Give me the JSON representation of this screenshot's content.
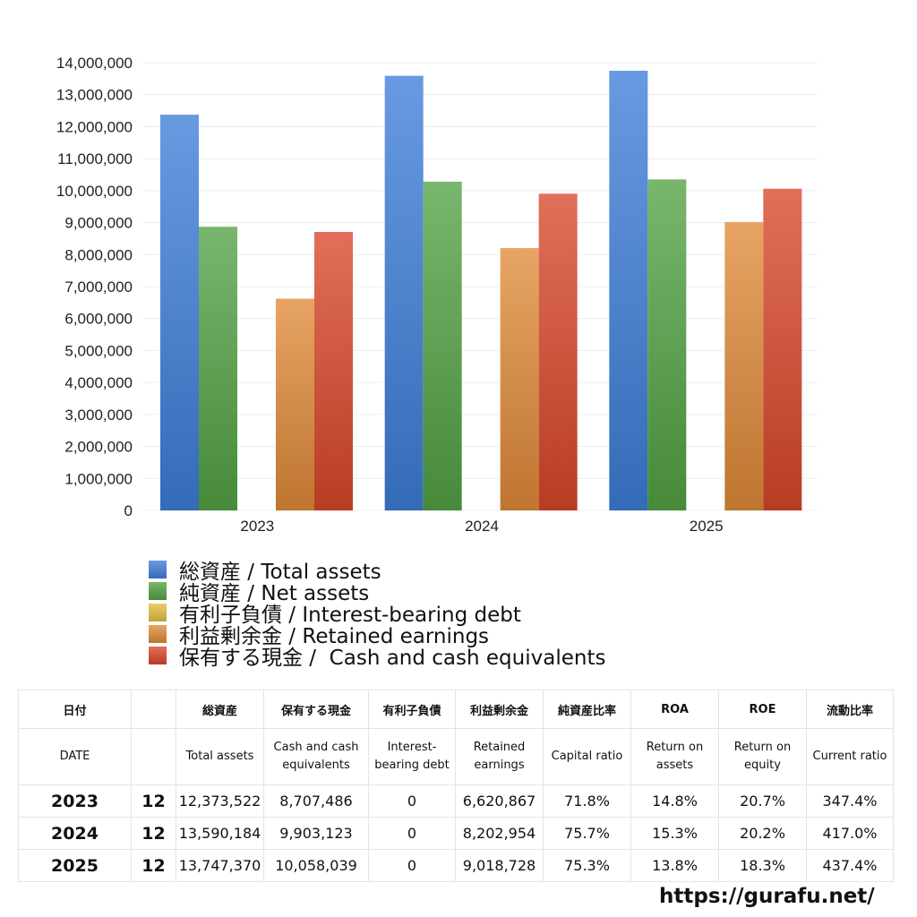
{
  "chart_data": {
    "type": "bar",
    "categories": [
      "2023",
      "2024",
      "2025"
    ],
    "series": [
      {
        "name": "総資産 / Total assets",
        "values": [
          12373522,
          13590184,
          13747370
        ],
        "color": "#3d7ed8"
      },
      {
        "name": "純資産 / Net assets",
        "values": [
          8870000,
          10280000,
          10350000
        ],
        "color": "#52a244"
      },
      {
        "name": "有利子負債 / Interest-bearing debt",
        "values": [
          0,
          0,
          0
        ],
        "color": "#e0c040"
      },
      {
        "name": "利益剰余金 / Retained earnings",
        "values": [
          6620867,
          8202954,
          9018728
        ],
        "color": "#e08a38"
      },
      {
        "name": "保有する現金 /  Cash and cash equivalents",
        "values": [
          8707486,
          9903123,
          10058039
        ],
        "color": "#d9472a"
      }
    ],
    "ylim": [
      0,
      14000000
    ],
    "yticks": [
      "0",
      "1,000,000",
      "2,000,000",
      "3,000,000",
      "4,000,000",
      "5,000,000",
      "6,000,000",
      "7,000,000",
      "8,000,000",
      "9,000,000",
      "10,000,000",
      "11,000,000",
      "12,000,000",
      "13,000,000",
      "14,000,000"
    ],
    "grid": true,
    "legend_position": "bottom"
  },
  "table": {
    "header_jp": [
      "日付",
      "",
      "総資産",
      "保有する現金",
      "有利子負債",
      "利益剰余金",
      "純資産比率",
      "ROA",
      "ROE",
      "流動比率"
    ],
    "header_en": [
      "DATE",
      "",
      "Total assets",
      "Cash and cash equivalents",
      "Interest-bearing debt",
      "Retained earnings",
      "Capital ratio",
      "Return on assets",
      "Return on equity",
      "Current ratio"
    ],
    "rows": [
      [
        "2023",
        "12",
        "12,373,522",
        "8,707,486",
        "0",
        "6,620,867",
        "71.8%",
        "14.8%",
        "20.7%",
        "347.4%"
      ],
      [
        "2024",
        "12",
        "13,590,184",
        "9,903,123",
        "0",
        "8,202,954",
        "75.7%",
        "15.3%",
        "20.2%",
        "417.0%"
      ],
      [
        "2025",
        "12",
        "13,747,370",
        "10,058,039",
        "0",
        "9,018,728",
        "75.3%",
        "13.8%",
        "18.3%",
        "437.4%"
      ]
    ]
  },
  "source_url": "https://gurafu.net/"
}
